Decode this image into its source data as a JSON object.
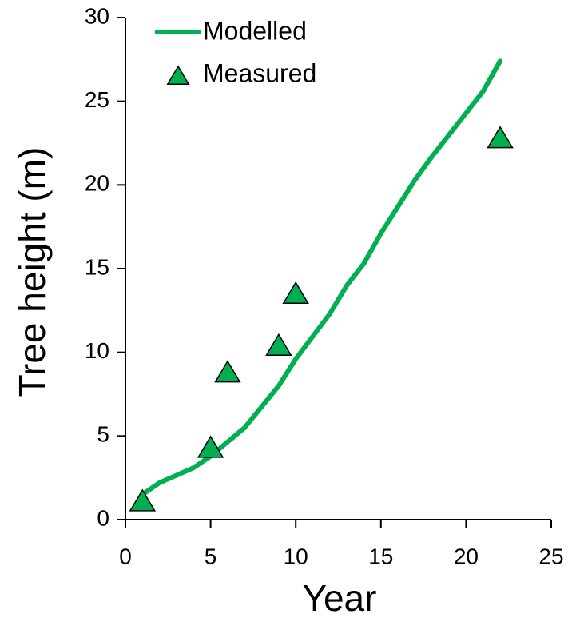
{
  "chart_data": {
    "type": "line",
    "x_label": "Year",
    "y_label": "Tree height (m)",
    "xlim": [
      0,
      25
    ],
    "xticks": [
      0,
      5,
      10,
      15,
      20,
      25
    ],
    "ylim": [
      0,
      30
    ],
    "yticks": [
      0,
      5,
      10,
      15,
      20,
      25,
      30
    ],
    "legend": "top-left",
    "series": [
      {
        "name": "Modelled",
        "color": "#00b050",
        "x": [
          1,
          2,
          4,
          5,
          7,
          9,
          10,
          12,
          13,
          14,
          15,
          17,
          18,
          20,
          21,
          22
        ],
        "values": [
          1.5,
          2.2,
          3.1,
          3.8,
          5.5,
          8.0,
          9.6,
          12.3,
          14.0,
          15.3,
          17.1,
          20.3,
          21.7,
          24.3,
          25.6,
          27.4
        ]
      },
      {
        "name": "Measured",
        "color": "#00b050",
        "marker": "triangle",
        "x": [
          1,
          5,
          6,
          9,
          10,
          22
        ],
        "values": [
          1.1,
          4.3,
          8.8,
          10.4,
          13.5,
          22.8
        ]
      }
    ]
  }
}
